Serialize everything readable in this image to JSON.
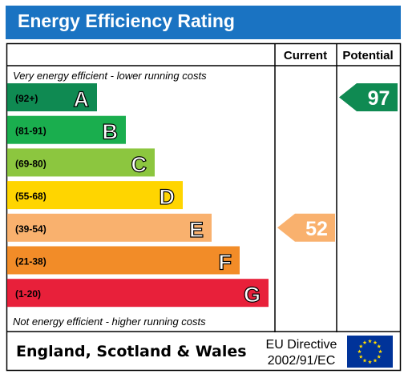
{
  "header": {
    "title": "Energy Efficiency Rating"
  },
  "columns": {
    "current": "Current",
    "potential": "Potential"
  },
  "captions": {
    "top": "Very energy efficient - lower running costs",
    "bottom": "Not energy efficient - higher running costs"
  },
  "footer": {
    "region": "England, Scotland & Wales",
    "directive_line1": "EU Directive",
    "directive_line2": "2002/91/EC",
    "flag_icon": "eu-flag-icon"
  },
  "chart_data": {
    "type": "bar",
    "categories": [
      "A",
      "B",
      "C",
      "D",
      "E",
      "F",
      "G"
    ],
    "ranges": [
      "(92+)",
      "(81-91)",
      "(69-80)",
      "(55-68)",
      "(39-54)",
      "(21-38)",
      "(1-20)"
    ],
    "colors": [
      "#0f8a52",
      "#1aae4e",
      "#8cc63f",
      "#ffd500",
      "#f9b16e",
      "#f28c28",
      "#e8203a"
    ],
    "current": {
      "value": 52,
      "band": "E",
      "color": "#f9b16e"
    },
    "potential": {
      "value": 97,
      "band": "A",
      "color": "#0f8a52"
    }
  }
}
